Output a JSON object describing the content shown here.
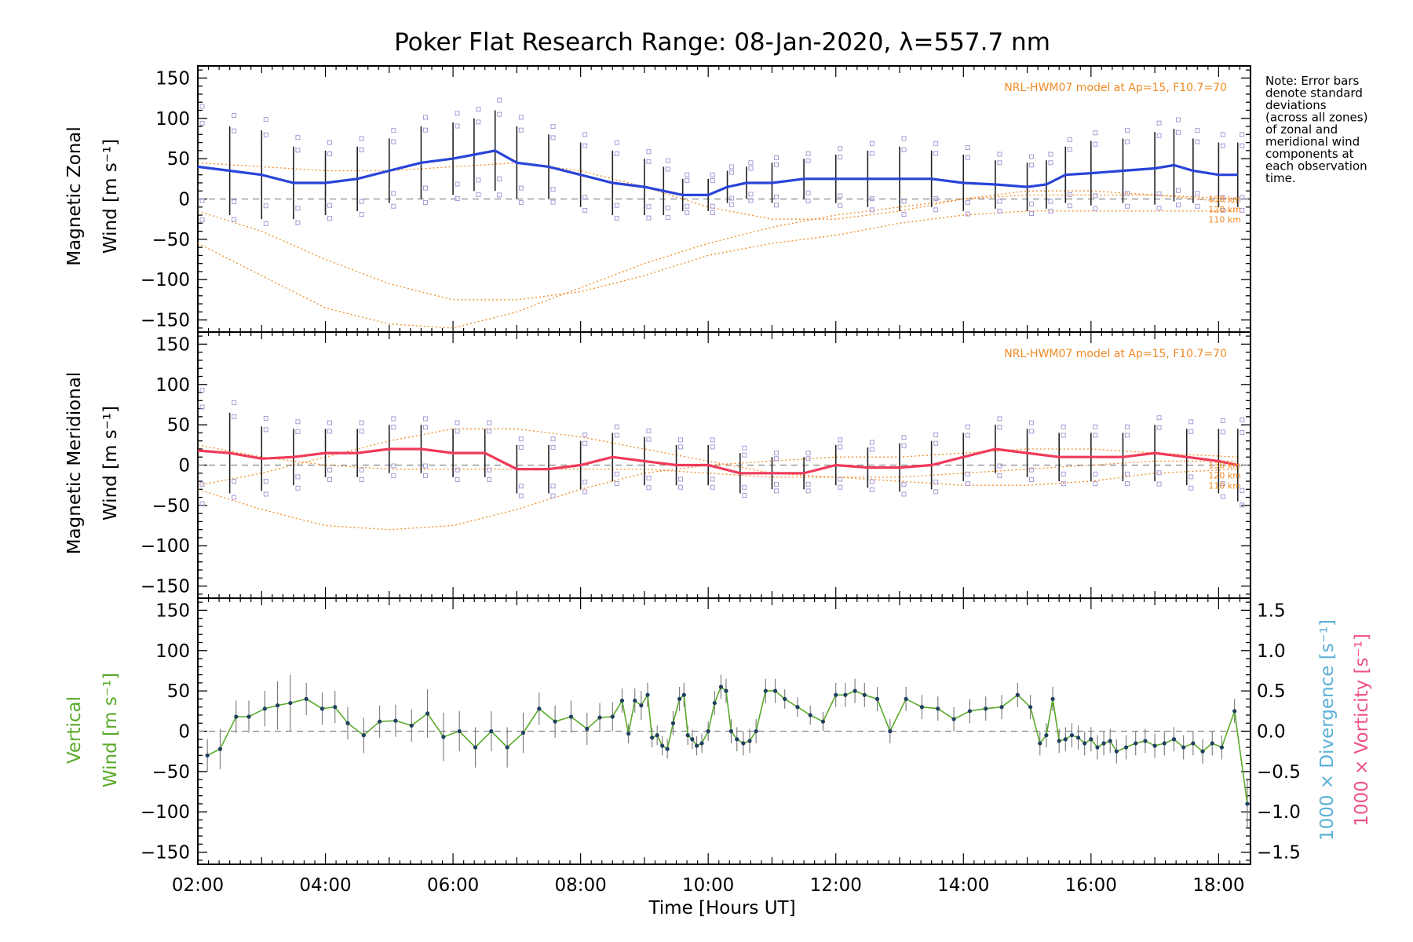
{
  "title": "Poker Flat Research Range: 08-Jan-2020, λ=557.7 nm",
  "note": [
    "Note: Error bars",
    "denote standard",
    "deviations",
    "(across all zones)",
    "of zonal and",
    "meridional wind",
    "components at",
    "each observation",
    "time."
  ],
  "xlabel": "Time [Hours UT]",
  "x_ticks": [
    "02:00",
    "04:00",
    "06:00",
    "08:00",
    "10:00",
    "12:00",
    "14:00",
    "16:00",
    "18:00"
  ],
  "y_ticks": [
    "150",
    "100",
    "50",
    "0",
    "−50",
    "−100",
    "−150"
  ],
  "right_ticks": [
    "1.5",
    "1.0",
    "0.5",
    "0.0",
    "−0.5",
    "−1.0",
    "−1.5"
  ],
  "panels": {
    "zonal": {
      "ylabel_line1": "Magnetic Zonal",
      "ylabel_line2": "Wind [m s⁻¹]",
      "model_label": "NRL-HWM07 model at Ap=15, F10.7=70",
      "km_labels": [
        "130 km",
        "120 km",
        "110 km"
      ]
    },
    "meridional": {
      "ylabel_line1": "Magnetic Meridional",
      "ylabel_line2": "Wind [m s⁻¹]",
      "model_label": "NRL-HWM07 model at Ap=15, F10.7=70",
      "km_labels": [
        "130 km",
        "120 km",
        "110 km"
      ]
    },
    "vertical": {
      "ylabel_line1": "Vertical",
      "ylabel_line2": "Wind [m s⁻¹]",
      "right_label1": "1000 × Divergence [s⁻¹]",
      "right_label2": "1000 × Vorticity [s⁻¹]"
    }
  },
  "colors": {
    "zonal": "#2a44d8",
    "meridional": "#f03a5a",
    "vertical": "#5aaa2a",
    "model": "#f08a24",
    "divergence": "#5ab0d8",
    "vorticity": "#f0508a",
    "scatter": "#a89ad8",
    "error_bar": "#222222",
    "marker": "#1f3f5f"
  },
  "chart_data": [
    {
      "type": "line",
      "panel": "zonal",
      "xlabel": "Time [Hours UT]",
      "ylabel": "Magnetic Zonal Wind [m s⁻¹]",
      "xlim": [
        2.0,
        18.5
      ],
      "ylim": [
        -165,
        165
      ],
      "grid": false,
      "series": [
        {
          "name": "mean zonal wind",
          "x": [
            2.0,
            2.5,
            3.0,
            3.5,
            4.0,
            4.5,
            5.0,
            5.5,
            6.0,
            6.33,
            6.66,
            7.0,
            7.5,
            8.0,
            8.5,
            9.0,
            9.3,
            9.6,
            10.0,
            10.3,
            10.6,
            11.0,
            11.5,
            12.0,
            12.5,
            13.0,
            13.5,
            14.0,
            14.5,
            15.0,
            15.3,
            15.6,
            16.0,
            16.5,
            17.0,
            17.3,
            17.6,
            18.0,
            18.3
          ],
          "y": [
            40,
            35,
            30,
            20,
            20,
            25,
            35,
            45,
            50,
            55,
            60,
            45,
            40,
            30,
            20,
            15,
            10,
            5,
            5,
            15,
            20,
            20,
            25,
            25,
            25,
            25,
            25,
            20,
            18,
            15,
            18,
            30,
            32,
            35,
            38,
            42,
            35,
            30,
            30
          ],
          "sd": [
            60,
            55,
            55,
            45,
            40,
            40,
            40,
            45,
            45,
            45,
            50,
            45,
            40,
            40,
            40,
            35,
            30,
            20,
            20,
            20,
            20,
            25,
            25,
            30,
            35,
            40,
            35,
            35,
            30,
            30,
            30,
            35,
            40,
            40,
            45,
            45,
            40,
            40,
            40
          ]
        },
        {
          "name": "130 km",
          "x": [
            2,
            3,
            4,
            5,
            6,
            7,
            8,
            9,
            10,
            11,
            12,
            13,
            14,
            15,
            16,
            17,
            18.3
          ],
          "y": [
            45,
            40,
            35,
            35,
            40,
            45,
            35,
            15,
            -10,
            -25,
            -25,
            -15,
            0,
            10,
            10,
            5,
            -5
          ]
        },
        {
          "name": "120 km",
          "x": [
            2,
            3,
            4,
            5,
            6,
            7,
            8,
            9,
            10,
            11,
            12,
            13,
            14,
            15,
            16,
            17,
            18.3
          ],
          "y": [
            -15,
            -40,
            -75,
            -105,
            -125,
            -125,
            -115,
            -95,
            -70,
            -55,
            -45,
            -30,
            -20,
            -15,
            -15,
            -15,
            -15
          ]
        },
        {
          "name": "110 km",
          "x": [
            2,
            3,
            4,
            5,
            6,
            7,
            8,
            9,
            10,
            11,
            12,
            13,
            14,
            15,
            16,
            17,
            18.3
          ],
          "y": [
            -55,
            -95,
            -135,
            -155,
            -160,
            -140,
            -110,
            -80,
            -55,
            -35,
            -20,
            -10,
            0,
            5,
            5,
            5,
            0
          ]
        }
      ]
    },
    {
      "type": "line",
      "panel": "meridional",
      "xlabel": "Time [Hours UT]",
      "ylabel": "Magnetic Meridional Wind [m s⁻¹]",
      "xlim": [
        2.0,
        18.5
      ],
      "ylim": [
        -165,
        165
      ],
      "grid": false,
      "series": [
        {
          "name": "mean meridional wind",
          "x": [
            2.0,
            2.5,
            3.0,
            3.5,
            4.0,
            4.5,
            5.0,
            5.5,
            6.0,
            6.5,
            7.0,
            7.5,
            8.0,
            8.5,
            9.0,
            9.5,
            10.0,
            10.5,
            11.0,
            11.5,
            12.0,
            12.5,
            13.0,
            13.5,
            14.0,
            14.5,
            15.0,
            15.5,
            16.0,
            16.5,
            17.0,
            17.5,
            18.0,
            18.3
          ],
          "y": [
            18,
            15,
            8,
            10,
            15,
            15,
            20,
            20,
            15,
            15,
            -5,
            -5,
            0,
            10,
            5,
            0,
            0,
            -10,
            -10,
            -10,
            0,
            -3,
            -3,
            0,
            10,
            20,
            15,
            10,
            10,
            10,
            15,
            10,
            5,
            0
          ],
          "sd": [
            60,
            50,
            40,
            35,
            30,
            30,
            30,
            30,
            30,
            30,
            30,
            30,
            30,
            30,
            30,
            25,
            25,
            25,
            20,
            20,
            25,
            25,
            30,
            30,
            30,
            30,
            30,
            30,
            30,
            30,
            35,
            35,
            40,
            45
          ]
        },
        {
          "name": "130 km",
          "x": [
            2,
            3,
            4,
            5,
            6,
            7,
            8,
            9,
            10,
            11,
            12,
            13,
            14,
            15,
            16,
            17,
            18.3
          ],
          "y": [
            -25,
            -10,
            10,
            30,
            45,
            45,
            35,
            20,
            5,
            -10,
            -15,
            -15,
            -10,
            -5,
            0,
            5,
            5
          ]
        },
        {
          "name": "120 km",
          "x": [
            2,
            3,
            4,
            5,
            6,
            7,
            8,
            9,
            10,
            11,
            12,
            13,
            14,
            15,
            16,
            17,
            18.3
          ],
          "y": [
            -30,
            -55,
            -75,
            -80,
            -75,
            -55,
            -30,
            -10,
            0,
            5,
            10,
            10,
            15,
            20,
            20,
            15,
            10
          ]
        },
        {
          "name": "110 km",
          "x": [
            2,
            3,
            4,
            5,
            6,
            7,
            8,
            9,
            10,
            11,
            12,
            13,
            14,
            15,
            16,
            17,
            18.3
          ],
          "y": [
            25,
            10,
            0,
            -5,
            -5,
            -5,
            -5,
            -5,
            -10,
            -15,
            -15,
            -20,
            -25,
            -25,
            -20,
            -10,
            -5
          ]
        }
      ]
    },
    {
      "type": "line",
      "panel": "vertical",
      "xlabel": "Time [Hours UT]",
      "ylabel": "Vertical Wind [m s⁻¹]",
      "xlim": [
        2.0,
        18.5
      ],
      "ylim": [
        -165,
        165
      ],
      "y2label": "1000 × Divergence [s⁻¹] / 1000 × Vorticity [s⁻¹]",
      "y2lim": [
        -1.65,
        1.65
      ],
      "grid": false,
      "series": [
        {
          "name": "vertical wind",
          "x": [
            2.15,
            2.35,
            2.6,
            2.8,
            3.05,
            3.25,
            3.45,
            3.7,
            3.95,
            4.15,
            4.35,
            4.6,
            4.85,
            5.1,
            5.35,
            5.6,
            5.85,
            6.1,
            6.35,
            6.6,
            6.85,
            7.1,
            7.35,
            7.6,
            7.85,
            8.1,
            8.3,
            8.5,
            8.65,
            8.75,
            8.85,
            8.95,
            9.05,
            9.12,
            9.2,
            9.28,
            9.36,
            9.45,
            9.55,
            9.62,
            9.68,
            9.75,
            9.82,
            9.9,
            10.0,
            10.1,
            10.2,
            10.28,
            10.36,
            10.45,
            10.55,
            10.65,
            10.75,
            10.9,
            11.05,
            11.2,
            11.4,
            11.6,
            11.8,
            12.0,
            12.15,
            12.3,
            12.45,
            12.65,
            12.85,
            13.1,
            13.35,
            13.6,
            13.85,
            14.1,
            14.35,
            14.6,
            14.85,
            15.05,
            15.2,
            15.3,
            15.4,
            15.5,
            15.6,
            15.7,
            15.8,
            15.9,
            16.0,
            16.1,
            16.2,
            16.3,
            16.4,
            16.55,
            16.7,
            16.85,
            17.0,
            17.15,
            17.3,
            17.45,
            17.6,
            17.75,
            17.9,
            18.05,
            18.25,
            18.45
          ],
          "y": [
            -30,
            -22,
            18,
            18,
            28,
            32,
            35,
            40,
            28,
            30,
            10,
            -5,
            12,
            13,
            7,
            22,
            -7,
            0,
            -20,
            0,
            -20,
            -2,
            28,
            12,
            18,
            3,
            17,
            18,
            38,
            -3,
            38,
            32,
            45,
            -8,
            -5,
            -18,
            -22,
            10,
            40,
            45,
            -5,
            -10,
            -18,
            -15,
            0,
            35,
            55,
            50,
            0,
            -10,
            -15,
            -12,
            0,
            50,
            50,
            40,
            30,
            20,
            12,
            45,
            45,
            50,
            45,
            40,
            0,
            40,
            30,
            28,
            15,
            25,
            28,
            30,
            45,
            30,
            -15,
            -5,
            40,
            -12,
            -10,
            -5,
            -8,
            -15,
            -10,
            -20,
            -15,
            -12,
            -25,
            -20,
            -15,
            -12,
            -18,
            -15,
            -10,
            -20,
            -15,
            -25,
            -15,
            -20,
            25,
            -90
          ],
          "err": [
            20,
            25,
            20,
            20,
            22,
            30,
            35,
            20,
            20,
            20,
            20,
            22,
            20,
            20,
            20,
            30,
            30,
            25,
            25,
            25,
            25,
            25,
            20,
            20,
            20,
            20,
            18,
            18,
            15,
            12,
            15,
            18,
            15,
            12,
            12,
            12,
            12,
            15,
            15,
            15,
            12,
            12,
            12,
            12,
            12,
            15,
            15,
            15,
            15,
            15,
            15,
            15,
            15,
            15,
            15,
            12,
            12,
            12,
            12,
            15,
            15,
            15,
            15,
            15,
            15,
            15,
            15,
            15,
            15,
            15,
            15,
            15,
            15,
            15,
            15,
            15,
            15,
            15,
            15,
            15,
            15,
            15,
            15,
            15,
            15,
            15,
            15,
            15,
            15,
            15,
            15,
            15,
            15,
            15,
            15,
            15,
            15,
            15,
            15,
            30
          ]
        }
      ]
    }
  ]
}
